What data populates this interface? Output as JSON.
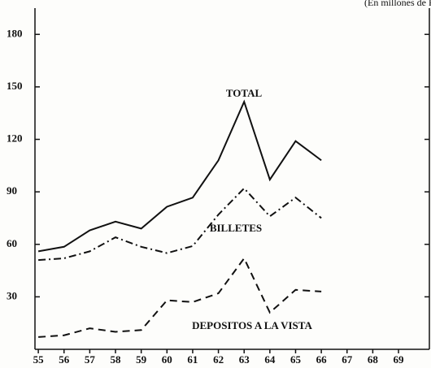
{
  "chart_data": {
    "type": "line",
    "annotation": "(En millones de R$)",
    "x": [
      55,
      56,
      57,
      58,
      59,
      60,
      61,
      62,
      63,
      64,
      65,
      66
    ],
    "series": [
      {
        "name": "TOTAL",
        "color": "#111111",
        "dash": "solid",
        "values": [
          56,
          58.6,
          68,
          73,
          69,
          81.5,
          86.7,
          108,
          141.5,
          97,
          119,
          108
        ]
      },
      {
        "name": "BILLETES",
        "color": "#111111",
        "dash": "dashdot",
        "values": [
          51,
          52,
          56,
          64,
          58.6,
          55,
          59,
          77,
          92,
          76,
          86.7,
          75
        ]
      },
      {
        "name": "DEPOSITOS A LA VISTA",
        "color": "#111111",
        "dash": "dashed",
        "values": [
          7,
          8,
          12,
          10,
          11,
          28,
          27,
          32,
          52,
          21,
          34,
          33
        ]
      }
    ],
    "xlim": [
      54.87,
      70.2
    ],
    "xticks": [
      55,
      56,
      57,
      58,
      59,
      60,
      61,
      62,
      63,
      64,
      65,
      66,
      67,
      68,
      69
    ],
    "ylim": [
      0,
      195
    ],
    "yticks": [
      30,
      60,
      90,
      120,
      150,
      180
    ],
    "grid": false
  }
}
